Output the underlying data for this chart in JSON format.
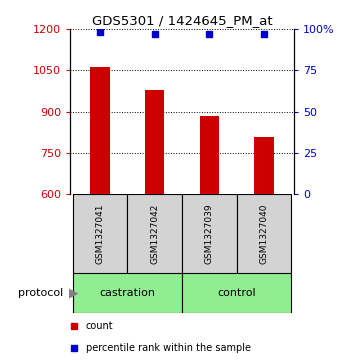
{
  "title": "GDS5301 / 1424645_PM_at",
  "samples": [
    "GSM1327041",
    "GSM1327042",
    "GSM1327039",
    "GSM1327040"
  ],
  "bar_values": [
    1062,
    977,
    884,
    808
  ],
  "percentile_values": [
    98,
    97,
    97,
    97
  ],
  "bar_color": "#cc0000",
  "percentile_color": "#0000cc",
  "ylim_left": [
    600,
    1200
  ],
  "ylim_right": [
    0,
    100
  ],
  "yticks_left": [
    600,
    750,
    900,
    1050,
    1200
  ],
  "yticks_right": [
    0,
    25,
    50,
    75,
    100
  ],
  "ytick_labels_right": [
    "0",
    "25",
    "50",
    "75",
    "100%"
  ],
  "sample_box_color": "#d3d3d3",
  "protocol_box_color": "#90ee90",
  "bg_color": "#ffffff",
  "bar_width": 0.35,
  "grid_color": "#000000",
  "protocol_groups": [
    {
      "label": "castration",
      "start": 0,
      "end": 1
    },
    {
      "label": "control",
      "start": 2,
      "end": 3
    }
  ]
}
